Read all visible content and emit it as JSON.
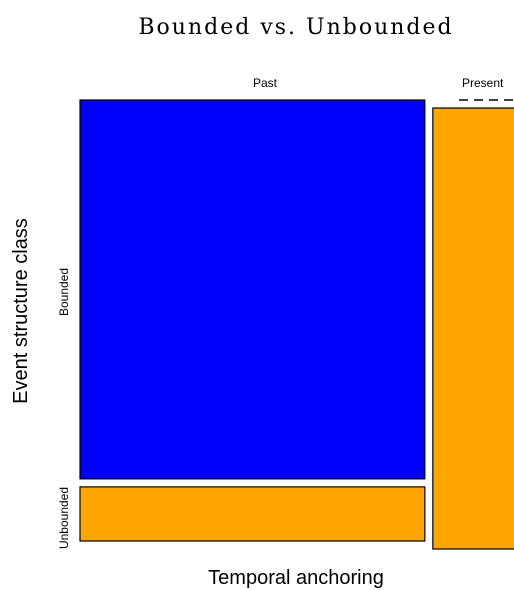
{
  "chart_data": {
    "type": "mosaic",
    "title": "Bounded vs. Unbounded",
    "xlabel": "Temporal anchoring",
    "ylabel": "Event structure class",
    "x_categories": [
      "Past",
      "Present"
    ],
    "y_categories": [
      "Bounded",
      "Unbounded"
    ],
    "column_shares": [
      0.74,
      0.26
    ],
    "cells": [
      {
        "x": "Past",
        "y": "Bounded",
        "share": 0.875,
        "color": "#0000ff"
      },
      {
        "x": "Past",
        "y": "Unbounded",
        "share": 0.125,
        "color": "#ffa500"
      },
      {
        "x": "Present",
        "y": "Bounded",
        "share": 0.0,
        "color": "#0000ff"
      },
      {
        "x": "Present",
        "y": "Unbounded",
        "share": 1.0,
        "color": "#ffa500"
      }
    ]
  }
}
